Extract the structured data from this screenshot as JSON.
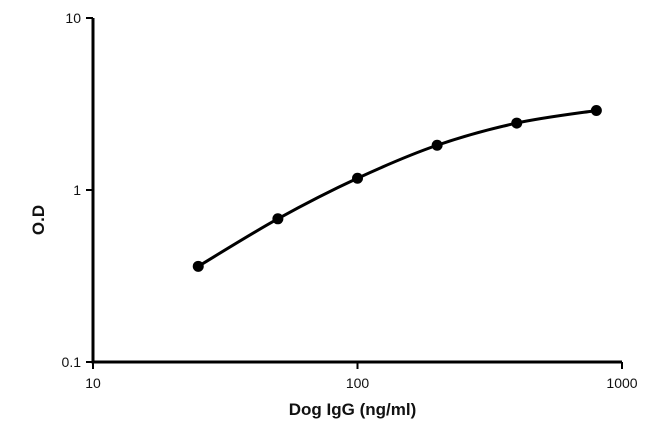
{
  "chart_data": {
    "type": "line",
    "title": "",
    "xlabel": "Dog IgG (ng/ml)",
    "ylabel": "O.D",
    "x_scale": "log",
    "y_scale": "log",
    "xlim": [
      10,
      1000
    ],
    "ylim": [
      0.1,
      10
    ],
    "x_ticks": [
      10,
      100,
      1000
    ],
    "x_tick_labels": [
      "10",
      "100",
      "1000"
    ],
    "y_ticks": [
      0.1,
      1,
      10
    ],
    "y_tick_labels": [
      "0.1",
      "1",
      "10"
    ],
    "grid": false,
    "legend": "none",
    "series": [
      {
        "x": [
          25,
          50,
          100,
          200,
          400,
          800
        ],
        "y": [
          0.36,
          0.68,
          1.17,
          1.82,
          2.45,
          2.9
        ],
        "color": "#000000",
        "marker": "circle",
        "smooth": true
      }
    ]
  }
}
